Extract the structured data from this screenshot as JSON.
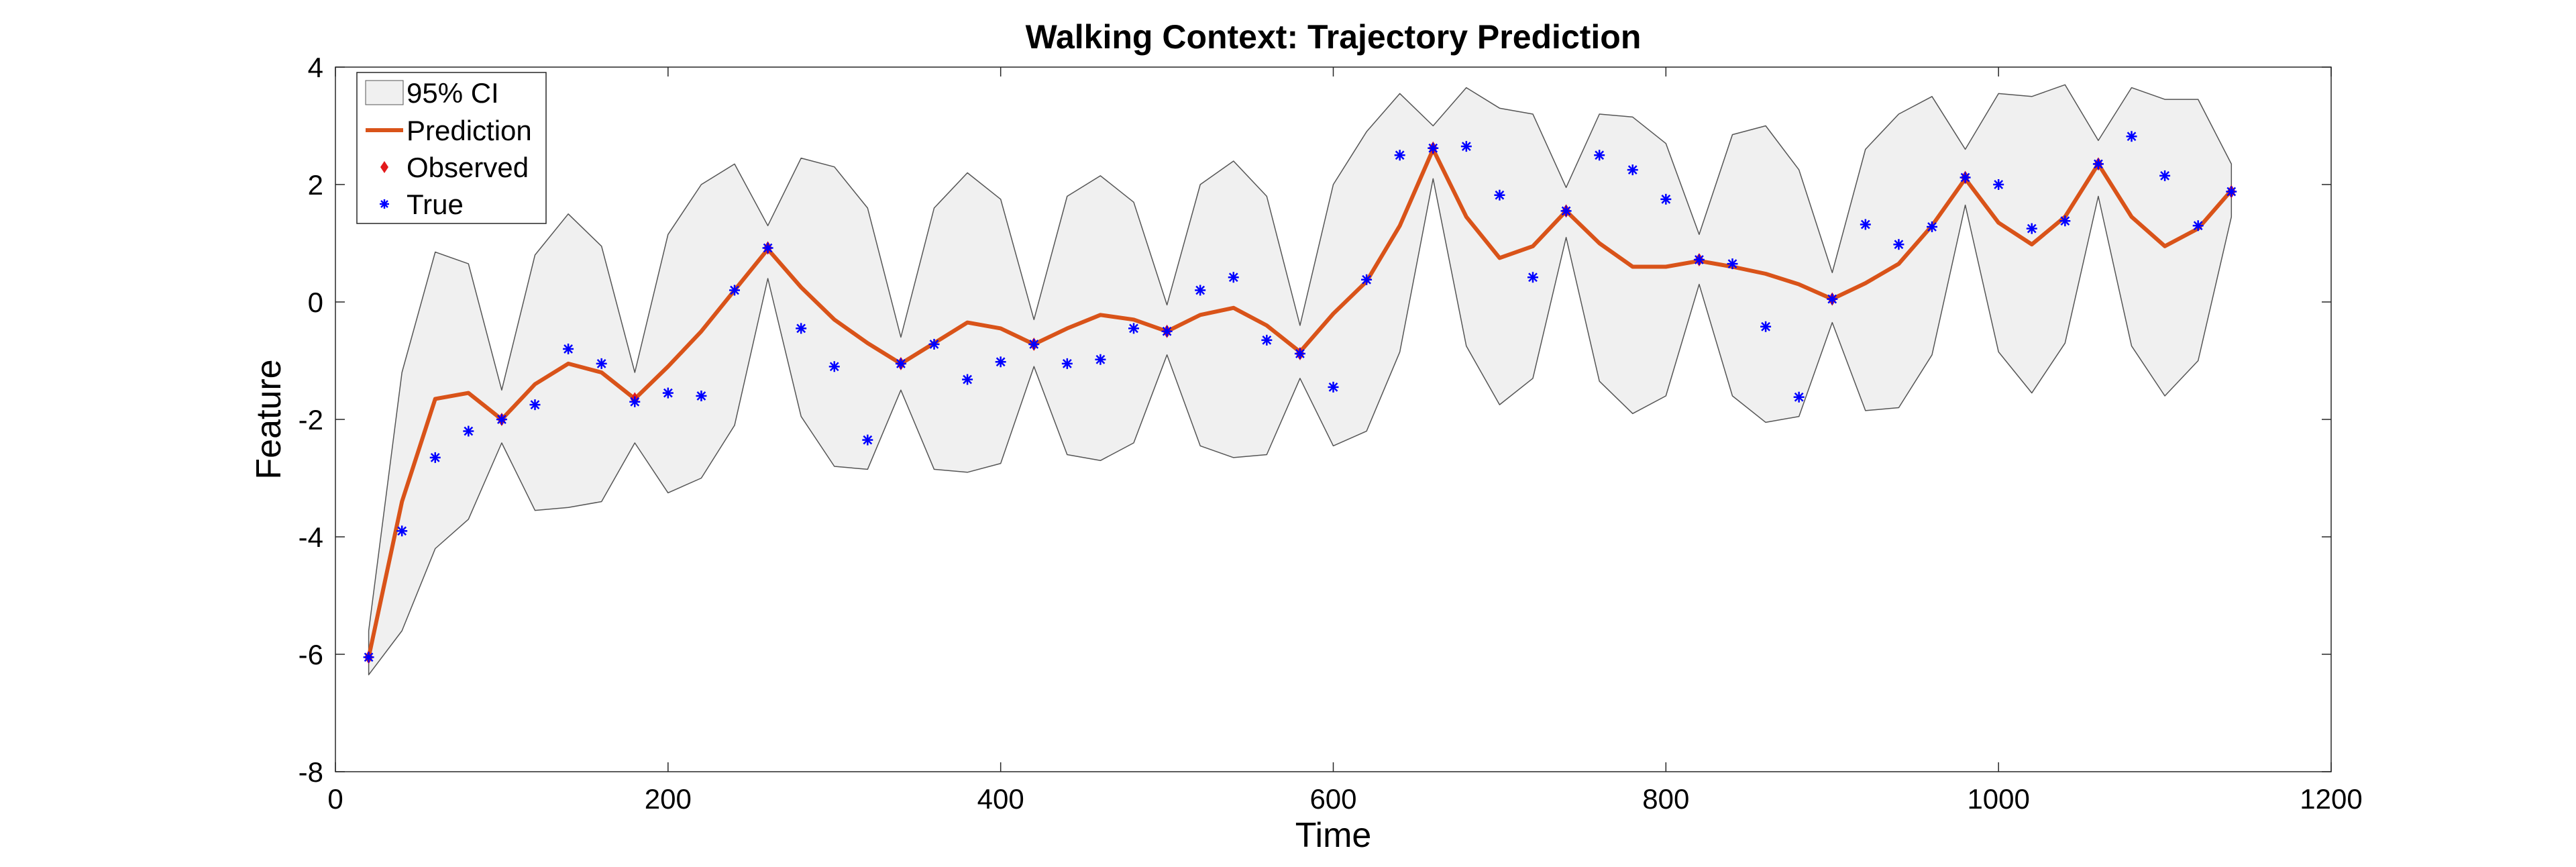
{
  "chart_data": {
    "type": "line",
    "title": "Walking Context: Trajectory Prediction",
    "xlabel": "Time",
    "ylabel": "Feature",
    "xlim": [
      0,
      1200
    ],
    "ylim": [
      -8,
      4
    ],
    "xticks": [
      0,
      200,
      400,
      600,
      800,
      1000,
      1200
    ],
    "yticks": [
      -8,
      -6,
      -4,
      -2,
      0,
      2,
      4
    ],
    "grid": false,
    "legend_position": "top-left",
    "legend": [
      "95% CI",
      "Prediction",
      "Observed",
      "True"
    ],
    "x": [
      20,
      40,
      60,
      80,
      100,
      120,
      140,
      160,
      180,
      200,
      220,
      240,
      260,
      280,
      300,
      320,
      340,
      360,
      380,
      400,
      420,
      440,
      460,
      480,
      500,
      520,
      540,
      560,
      580,
      600,
      620,
      640,
      660,
      680,
      700,
      720,
      740,
      760,
      780,
      800,
      820,
      840,
      860,
      880,
      900,
      920,
      940,
      960,
      980,
      1000,
      1020,
      1040,
      1060,
      1080,
      1100,
      1120,
      1140
    ],
    "series": [
      {
        "name": "95% CI",
        "type": "area",
        "upper": [
          -5.6,
          -1.2,
          0.85,
          0.65,
          -1.5,
          0.8,
          1.5,
          0.95,
          -1.2,
          1.15,
          2.0,
          2.35,
          1.3,
          2.45,
          2.3,
          1.6,
          -0.6,
          1.6,
          2.2,
          1.75,
          -0.3,
          1.8,
          2.15,
          1.7,
          -0.05,
          2.0,
          2.4,
          1.8,
          -0.4,
          2.0,
          2.9,
          3.55,
          3.0,
          3.65,
          3.3,
          3.2,
          1.95,
          3.2,
          3.15,
          2.7,
          1.15,
          2.85,
          3.0,
          2.25,
          0.5,
          2.6,
          3.2,
          3.5,
          2.6,
          3.55,
          3.5,
          3.7,
          2.75,
          3.65,
          3.45,
          3.45,
          2.35
        ],
        "lower": [
          -6.35,
          -5.6,
          -4.2,
          -3.7,
          -2.4,
          -3.55,
          -3.5,
          -3.4,
          -2.4,
          -3.25,
          -3.0,
          -2.1,
          0.4,
          -1.95,
          -2.8,
          -2.85,
          -1.5,
          -2.85,
          -2.9,
          -2.75,
          -1.1,
          -2.6,
          -2.7,
          -2.4,
          -0.9,
          -2.45,
          -2.65,
          -2.6,
          -1.3,
          -2.45,
          -2.2,
          -0.85,
          2.1,
          -0.75,
          -1.75,
          -1.3,
          1.1,
          -1.35,
          -1.9,
          -1.6,
          0.3,
          -1.6,
          -2.05,
          -1.95,
          -0.35,
          -1.85,
          -1.8,
          -0.9,
          1.65,
          -0.85,
          -1.55,
          -0.7,
          1.8,
          -0.75,
          -1.6,
          -1.0,
          1.45
        ]
      },
      {
        "name": "Prediction",
        "type": "line",
        "color": "#d95319",
        "y": [
          -6.05,
          -3.4,
          -1.65,
          -1.55,
          -2.0,
          -1.4,
          -1.05,
          -1.2,
          -1.65,
          -1.1,
          -0.5,
          0.2,
          0.9,
          0.25,
          -0.3,
          -0.7,
          -1.05,
          -0.7,
          -0.35,
          -0.45,
          -0.72,
          -0.45,
          -0.22,
          -0.3,
          -0.5,
          -0.22,
          -0.1,
          -0.4,
          -0.85,
          -0.2,
          0.35,
          1.3,
          2.6,
          1.45,
          0.75,
          0.95,
          1.55,
          1.0,
          0.6,
          0.6,
          0.7,
          0.6,
          0.48,
          0.3,
          0.05,
          0.32,
          0.65,
          1.3,
          2.1,
          1.35,
          0.98,
          1.45,
          2.35,
          1.45,
          0.95,
          1.25,
          1.9
        ]
      },
      {
        "name": "Observed",
        "type": "scatter",
        "color": "#e31a1c",
        "x": [
          20,
          100,
          180,
          260,
          340,
          420,
          500,
          580,
          660,
          740,
          820,
          900,
          980,
          1060,
          1140
        ],
        "y": [
          -6.05,
          -2.0,
          -1.65,
          0.92,
          -1.05,
          -0.72,
          -0.5,
          -0.88,
          2.62,
          1.55,
          0.72,
          0.05,
          2.12,
          2.35,
          1.88
        ]
      },
      {
        "name": "True",
        "type": "scatter",
        "color": "#0000ff",
        "y": [
          -6.05,
          -3.9,
          -2.65,
          -2.2,
          -2.0,
          -1.75,
          -0.8,
          -1.05,
          -1.7,
          -1.55,
          -1.6,
          0.2,
          0.92,
          -0.45,
          -1.1,
          -2.35,
          -1.05,
          -0.72,
          -1.32,
          -1.02,
          -0.72,
          -1.05,
          -0.98,
          -0.45,
          -0.5,
          0.2,
          0.42,
          -0.65,
          -0.88,
          -1.45,
          0.38,
          2.5,
          2.62,
          2.65,
          1.82,
          0.42,
          1.55,
          2.5,
          2.25,
          1.75,
          0.72,
          0.65,
          -0.42,
          -1.62,
          0.05,
          1.32,
          0.98,
          1.28,
          2.12,
          2.0,
          1.25,
          1.38,
          2.35,
          2.82,
          2.15,
          1.3,
          1.88
        ]
      }
    ]
  }
}
